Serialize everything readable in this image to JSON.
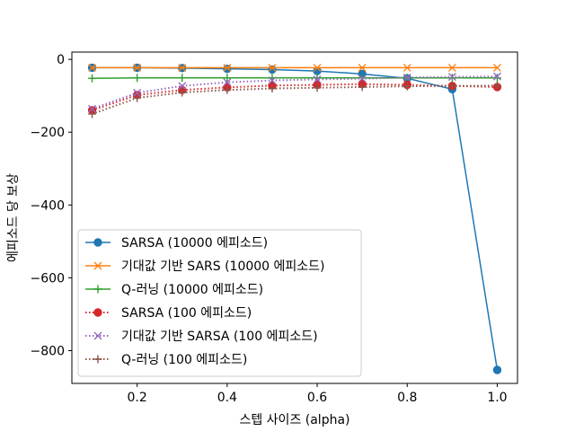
{
  "chart_data": {
    "type": "line",
    "title": "",
    "xlabel": "스텝 사이즈 (alpha)",
    "ylabel": "에피소드 당 보상",
    "xlim": [
      0.055,
      1.045
    ],
    "ylim": [
      -890,
      20
    ],
    "x_ticks": [
      0.2,
      0.4,
      0.6,
      0.8,
      1.0
    ],
    "x_tick_labels": [
      "0.2",
      "0.4",
      "0.6",
      "0.8",
      "1.0"
    ],
    "y_ticks": [
      0,
      -200,
      -400,
      -600,
      -800
    ],
    "y_tick_labels": [
      "0",
      "−200",
      "−400",
      "−600",
      "−800"
    ],
    "grid": false,
    "legend_position": "lower-left",
    "x": [
      0.1,
      0.2,
      0.3,
      0.4,
      0.5,
      0.6,
      0.7,
      0.8,
      0.9,
      1.0
    ],
    "series": [
      {
        "name": "SARSA (10000 에피소드)",
        "color": "#1f77b4",
        "linestyle": "solid",
        "marker": "circle",
        "values": [
          -23,
          -23,
          -24,
          -26,
          -28,
          -32,
          -40,
          -52,
          -82,
          -853
        ]
      },
      {
        "name": "기대값 기반 SARS (10000 에피소드)",
        "color": "#ff7f0e",
        "linestyle": "solid",
        "marker": "x",
        "values": [
          -23,
          -23,
          -23,
          -23,
          -23,
          -23,
          -23,
          -23,
          -23,
          -23
        ]
      },
      {
        "name": "Q-러닝 (10000 에피소드)",
        "color": "#2ca02c",
        "linestyle": "solid",
        "marker": "plus",
        "values": [
          -52,
          -51,
          -51,
          -51,
          -51,
          -51,
          -51,
          -51,
          -51,
          -51
        ]
      },
      {
        "name": "SARSA (100 에피소드)",
        "color": "#d62728",
        "linestyle": "dotted",
        "marker": "circle",
        "values": [
          -140,
          -98,
          -84,
          -77,
          -72,
          -70,
          -68,
          -70,
          -73,
          -76
        ]
      },
      {
        "name": "기대값 기반 SARSA (100 에피소드)",
        "color": "#9467bd",
        "linestyle": "dotted",
        "marker": "x",
        "values": [
          -136,
          -92,
          -73,
          -63,
          -58,
          -55,
          -53,
          -50,
          -48,
          -47
        ]
      },
      {
        "name": "Q-러닝 (100 에피소드)",
        "color": "#8c564b",
        "linestyle": "dotted",
        "marker": "plus",
        "values": [
          -150,
          -106,
          -91,
          -84,
          -80,
          -78,
          -76,
          -74,
          -73,
          -72
        ]
      }
    ]
  }
}
